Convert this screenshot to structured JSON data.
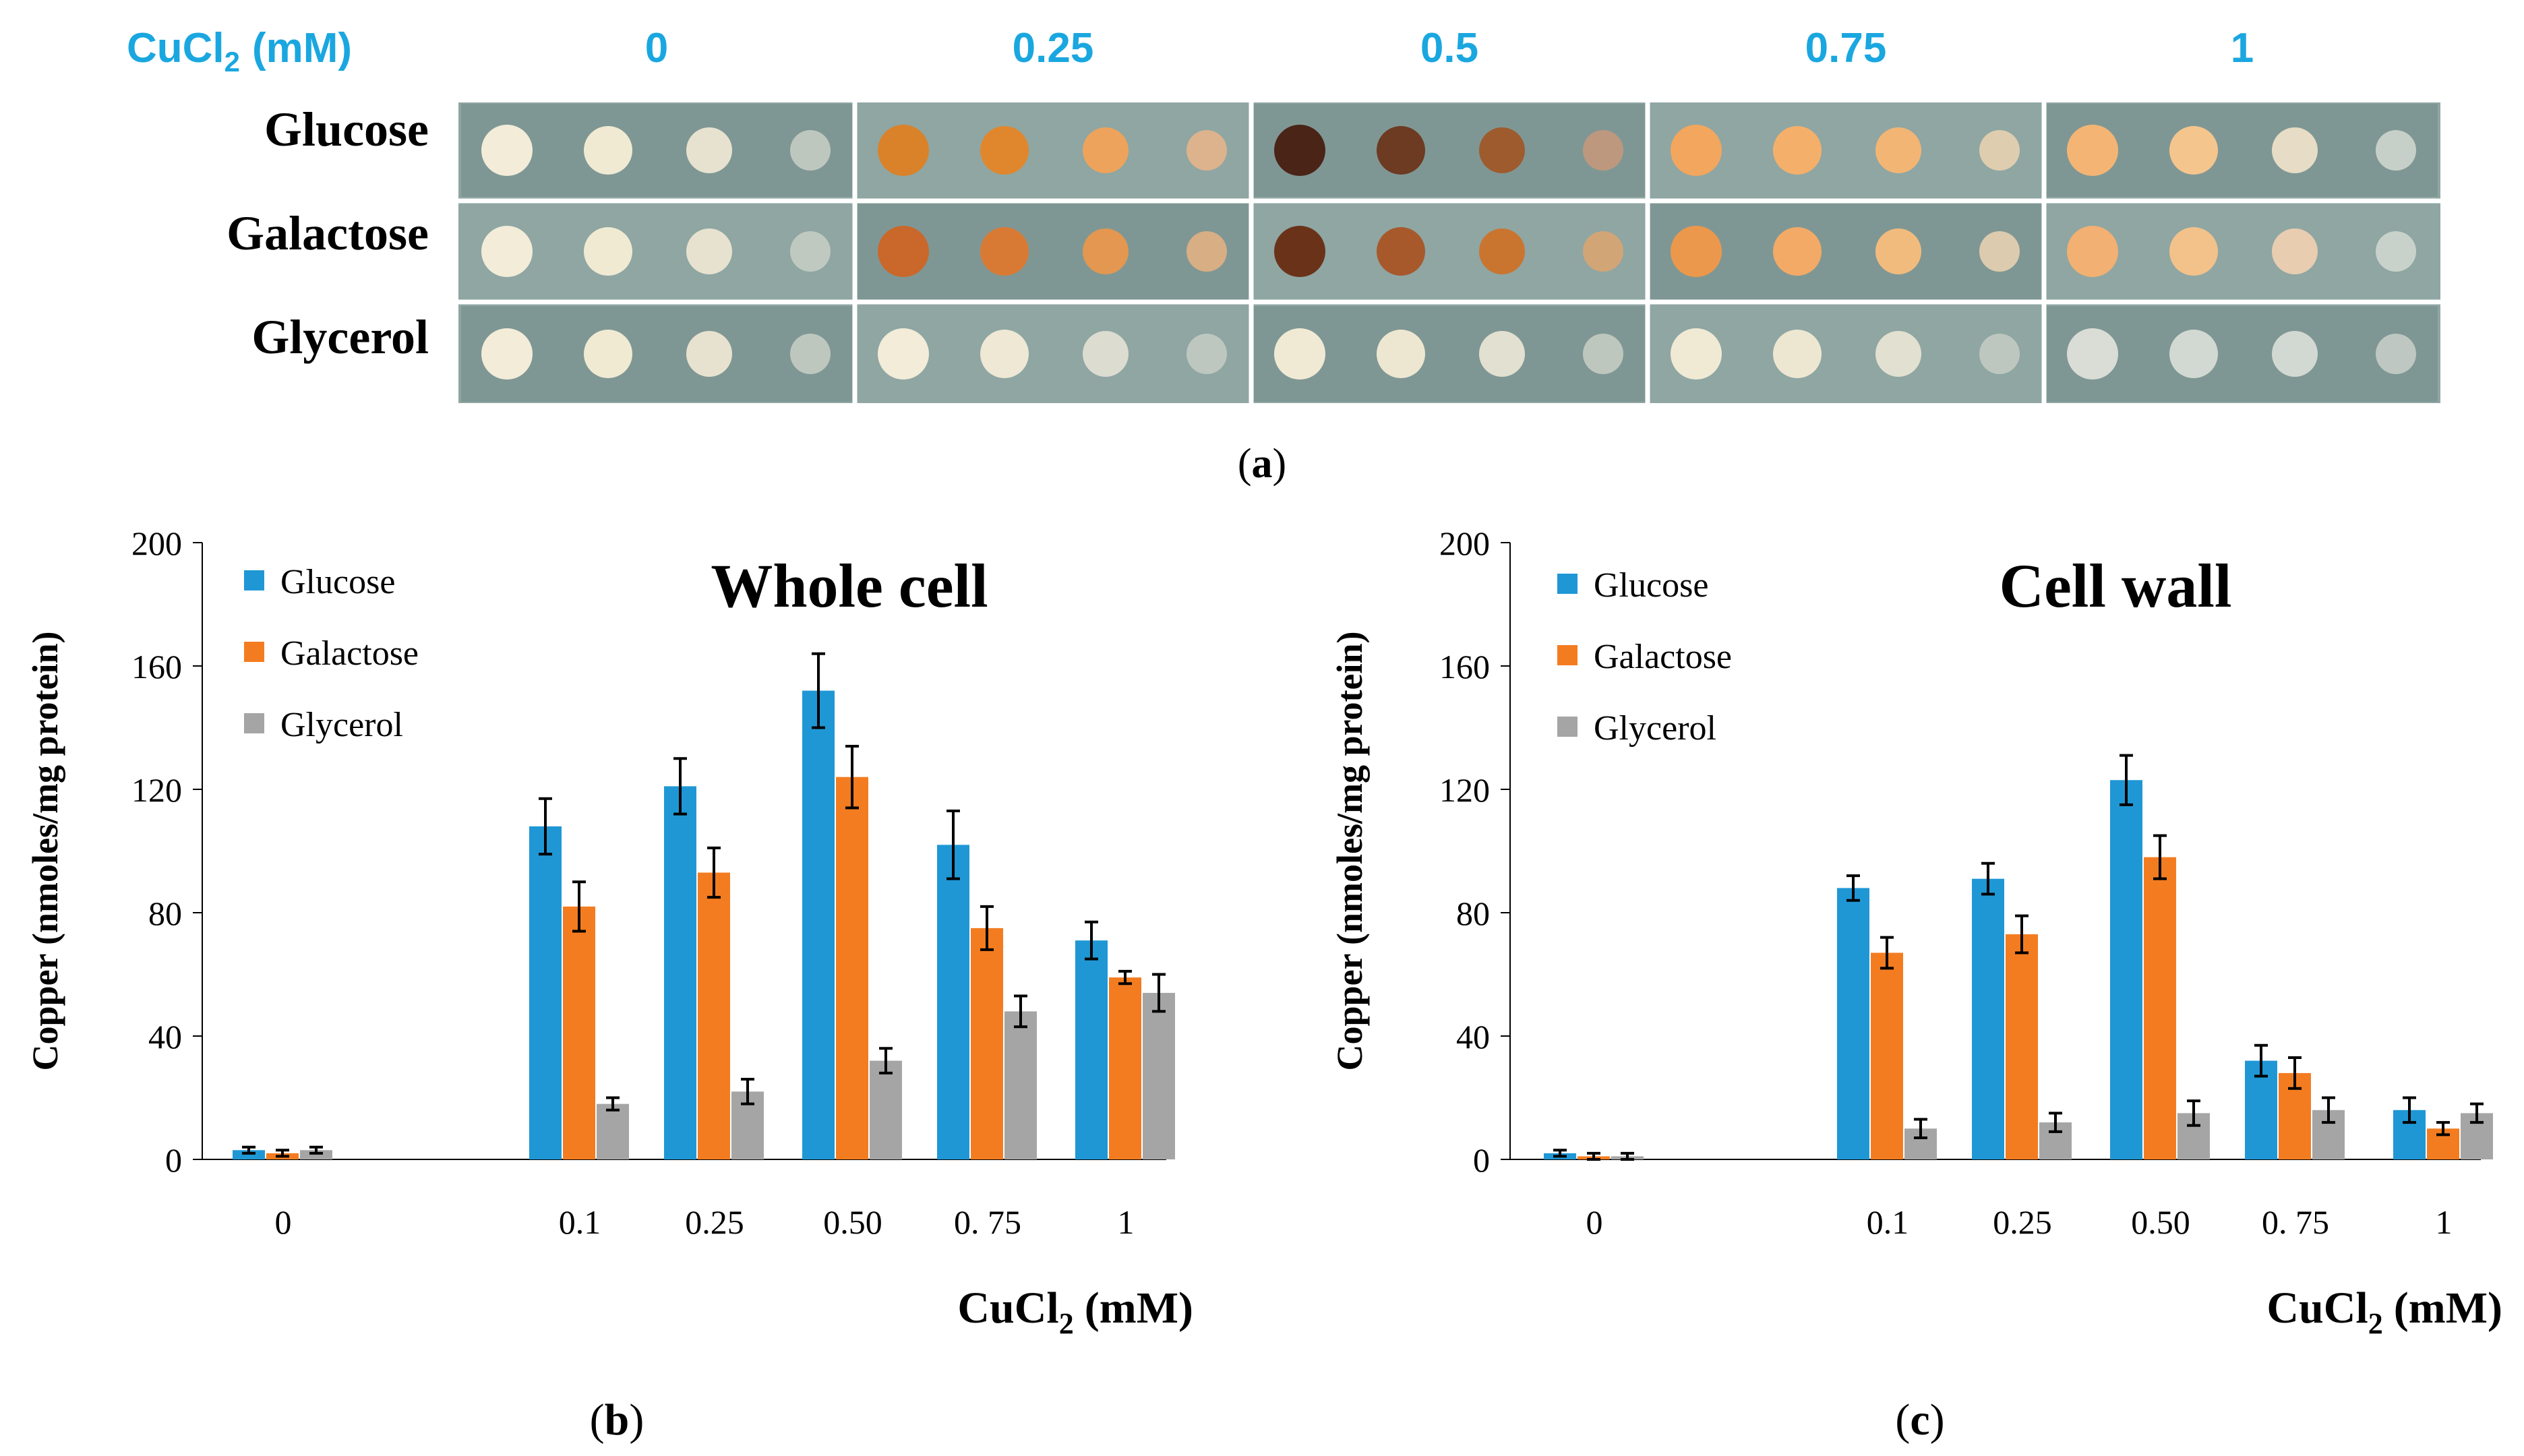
{
  "panel_a": {
    "header_label": "CuCl",
    "header_sub": "2",
    "header_unit": "(mM)",
    "concentrations": [
      "0",
      "0.25",
      "0.5",
      "0.75",
      "1"
    ],
    "rows": [
      "Glucose",
      "Galactose",
      "Glycerol"
    ],
    "caption": "(a)",
    "caption_letter": "a",
    "colors": {
      "header": "#1aa7e0",
      "plate_bg": "#8fa6a3",
      "plate_bg_dark": "#7f9794",
      "divider": "#ffffff"
    },
    "spot_colors": [
      [
        [
          "#f2ecd8",
          "#f0ead3",
          "#e7e2cf",
          "#c9cfc6"
        ],
        [
          "#d9822a",
          "#e0872e",
          "#eda35b",
          "#eab58a"
        ],
        [
          "#4a2417",
          "#6d3a22",
          "#9e5b2e",
          "#c8987a"
        ],
        [
          "#f2a65e",
          "#f4b06a",
          "#f3b574",
          "#ecd3b0"
        ],
        [
          "#f4b574",
          "#f5c58e",
          "#e7dcc5",
          "#d3d9d1"
        ]
      ],
      [
        [
          "#f2ecd8",
          "#f0ead3",
          "#e7e2cf",
          "#c9cfc6"
        ],
        [
          "#c9682a",
          "#d97a34",
          "#e39750",
          "#e8b182"
        ],
        [
          "#6a3319",
          "#a7592b",
          "#c9752f",
          "#dea56e"
        ],
        [
          "#ec984c",
          "#f2aa66",
          "#f2bb7e",
          "#ecd3b4"
        ],
        [
          "#f2b072",
          "#f2c28a",
          "#e8cdb0",
          "#d3d9d1"
        ]
      ],
      [
        [
          "#f2ecd8",
          "#f0ead3",
          "#e7e2cf",
          "#c9cfc6"
        ],
        [
          "#f2ecd8",
          "#eee8d5",
          "#dcdcd0",
          "#c6ccc6"
        ],
        [
          "#f0ead5",
          "#ede7d2",
          "#e2e0d0",
          "#c9cfc6"
        ],
        [
          "#f0ead5",
          "#ede7d2",
          "#e2e0d0",
          "#c6ccc6"
        ],
        [
          "#d9ddd6",
          "#d2d8d2",
          "#d2d8d2",
          "#c9cfc9"
        ]
      ]
    ]
  },
  "chart_data": [
    {
      "type": "bar",
      "title": "Whole cell",
      "ylabel": "Copper (nmoles/mg protein)",
      "xlabel_main": "CuCl",
      "xlabel_sub": "2",
      "xlabel_unit": "(mM)",
      "caption": "(b)",
      "caption_letter": "b",
      "categories": [
        "0",
        "0.1",
        "0.25",
        "0.50",
        "0. 75",
        "1"
      ],
      "ylim": [
        0,
        200
      ],
      "yticks": [
        0,
        40,
        80,
        120,
        160,
        200
      ],
      "legend_position": "top-left",
      "series": [
        {
          "name": "Glucose",
          "color": "#1f97d5",
          "values": [
            3,
            108,
            121,
            152,
            102,
            71
          ],
          "errors": [
            1,
            9,
            9,
            12,
            11,
            6
          ]
        },
        {
          "name": "Galactose",
          "color": "#f47c20",
          "values": [
            2,
            82,
            93,
            124,
            75,
            59
          ],
          "errors": [
            1,
            8,
            8,
            10,
            7,
            2
          ]
        },
        {
          "name": "Glycerol",
          "color": "#a5a5a5",
          "values": [
            3,
            18,
            22,
            32,
            48,
            54
          ],
          "errors": [
            1,
            2,
            4,
            4,
            5,
            6
          ]
        }
      ]
    },
    {
      "type": "bar",
      "title": "Cell wall",
      "ylabel": "Copper (nmoles/mg protein)",
      "xlabel_main": "CuCl",
      "xlabel_sub": "2",
      "xlabel_unit": "(mM)",
      "caption": "(c)",
      "caption_letter": "c",
      "categories": [
        "0",
        "0.1",
        "0.25",
        "0.50",
        "0. 75",
        "1"
      ],
      "ylim": [
        0,
        200
      ],
      "yticks": [
        0,
        40,
        80,
        120,
        160,
        200
      ],
      "legend_position": "top-left",
      "series": [
        {
          "name": "Glucose",
          "color": "#1f97d5",
          "values": [
            2,
            88,
            91,
            123,
            32,
            16
          ],
          "errors": [
            1,
            4,
            5,
            8,
            5,
            4
          ]
        },
        {
          "name": "Galactose",
          "color": "#f47c20",
          "values": [
            1,
            67,
            73,
            98,
            28,
            10
          ],
          "errors": [
            1,
            5,
            6,
            7,
            5,
            2
          ]
        },
        {
          "name": "Glycerol",
          "color": "#a5a5a5",
          "values": [
            1,
            10,
            12,
            15,
            16,
            15
          ],
          "errors": [
            1,
            3,
            3,
            4,
            4,
            3
          ]
        }
      ]
    }
  ]
}
